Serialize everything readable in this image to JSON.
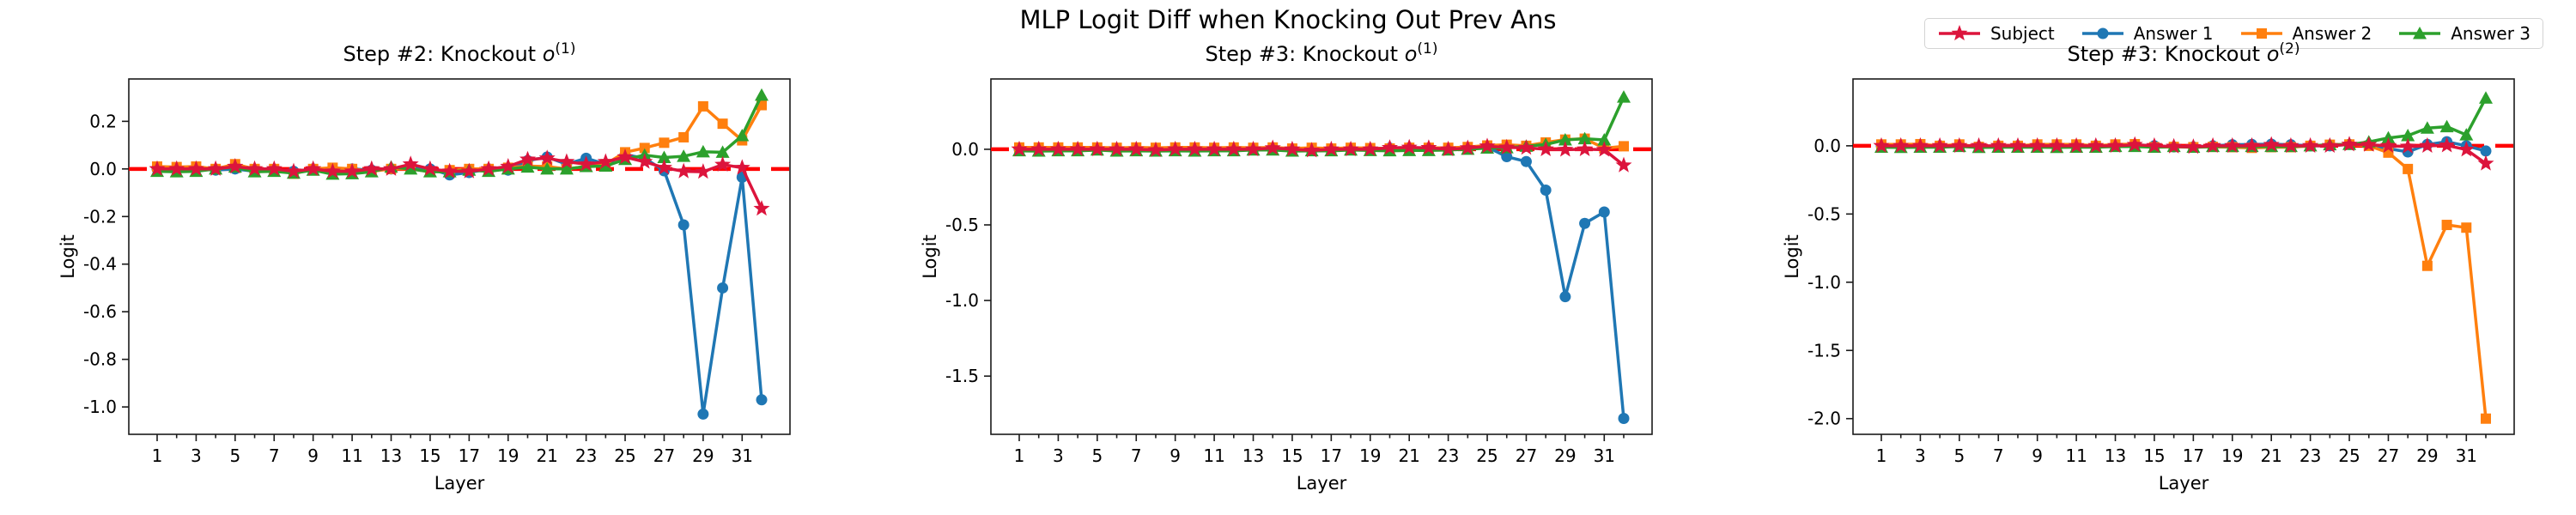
{
  "suptitle": "MLP Logit Diff when Knocking Out Prev Ans",
  "colors": {
    "zero_line": "#ff0000",
    "subject": "#dc143c",
    "answer1": "#1f77b4",
    "answer2": "#ff7f0e",
    "answer3": "#2ca02c",
    "axis": "#1a1a1a"
  },
  "legend": {
    "items": [
      {
        "label": "Subject",
        "marker": "star",
        "color": "#dc143c"
      },
      {
        "label": "Answer 1",
        "marker": "circle",
        "color": "#1f77b4"
      },
      {
        "label": "Answer 2",
        "marker": "square",
        "color": "#ff7f0e"
      },
      {
        "label": "Answer 3",
        "marker": "triangle",
        "color": "#2ca02c"
      }
    ]
  },
  "chart_data": [
    {
      "type": "line",
      "title": {
        "prefix": "Step #2: Knockout ",
        "var": "o",
        "sup": "(1)"
      },
      "xlabel": "Layer",
      "ylabel": "Logit",
      "x": [
        1,
        2,
        3,
        4,
        5,
        6,
        7,
        8,
        9,
        10,
        11,
        12,
        13,
        14,
        15,
        16,
        17,
        18,
        19,
        20,
        21,
        22,
        23,
        24,
        25,
        26,
        27,
        28,
        29,
        30,
        31,
        32
      ],
      "xticks": [
        1,
        3,
        5,
        7,
        9,
        11,
        13,
        15,
        17,
        19,
        21,
        23,
        25,
        27,
        29,
        31
      ],
      "ylim": [
        -1.115,
        0.378
      ],
      "yticks": [
        "0.2",
        "0.0",
        "-0.2",
        "-0.4",
        "-0.6",
        "-0.8",
        "-1.0"
      ],
      "zero_line": 0.0,
      "grid": false,
      "series": [
        {
          "name": "Subject",
          "marker": "star",
          "color": "#dc143c",
          "zorder": 5,
          "values": [
            0.0,
            0.0,
            0.0,
            0.0,
            0.01,
            0.0,
            0.0,
            -0.01,
            0.0,
            -0.01,
            -0.01,
            0.0,
            0.0,
            0.02,
            0.0,
            -0.01,
            -0.01,
            0.0,
            0.01,
            0.04,
            0.045,
            0.03,
            0.02,
            0.03,
            0.05,
            0.03,
            0.005,
            -0.01,
            -0.012,
            0.018,
            0.005,
            -0.167
          ]
        },
        {
          "name": "Answer 1",
          "marker": "circle",
          "color": "#1f77b4",
          "zorder": 2,
          "values": [
            0.0,
            0.0,
            0.0,
            -0.005,
            0.0,
            -0.01,
            -0.008,
            -0.01,
            0.0,
            -0.01,
            0.0,
            -0.005,
            0.0,
            0.005,
            0.0,
            -0.025,
            -0.015,
            0.0,
            -0.005,
            0.035,
            0.05,
            0.02,
            0.045,
            0.02,
            0.06,
            0.045,
            -0.008,
            -0.235,
            -1.03,
            -0.5,
            -0.035,
            -0.97
          ]
        },
        {
          "name": "Answer 2",
          "marker": "square",
          "color": "#ff7f0e",
          "zorder": 3,
          "values": [
            0.01,
            0.008,
            0.01,
            0.0,
            0.02,
            0.0,
            0.0,
            -0.02,
            0.0,
            0.005,
            0.0,
            -0.01,
            0.0,
            0.0,
            -0.012,
            -0.005,
            0.0,
            0.0,
            0.005,
            0.012,
            0.01,
            0.0,
            0.01,
            0.02,
            0.07,
            0.088,
            0.11,
            0.133,
            0.263,
            0.19,
            0.12,
            0.268
          ]
        },
        {
          "name": "Answer 3",
          "marker": "triangle",
          "color": "#2ca02c",
          "zorder": 4,
          "values": [
            -0.01,
            -0.012,
            -0.01,
            0.0,
            0.008,
            -0.012,
            -0.01,
            -0.018,
            -0.005,
            -0.022,
            -0.02,
            -0.012,
            0.008,
            0.0,
            -0.012,
            -0.012,
            -0.005,
            -0.01,
            0.0,
            0.008,
            0.0,
            0.0,
            0.01,
            0.012,
            0.04,
            0.058,
            0.048,
            0.053,
            0.072,
            0.07,
            0.14,
            0.31
          ]
        }
      ]
    },
    {
      "type": "line",
      "title": {
        "prefix": "Step #3: Knockout ",
        "var": "o",
        "sup": "(1)"
      },
      "xlabel": "Layer",
      "ylabel": "Logit",
      "x": [
        1,
        2,
        3,
        4,
        5,
        6,
        7,
        8,
        9,
        10,
        11,
        12,
        13,
        14,
        15,
        16,
        17,
        18,
        19,
        20,
        21,
        22,
        23,
        24,
        25,
        26,
        27,
        28,
        29,
        30,
        31,
        32
      ],
      "xticks": [
        1,
        3,
        5,
        7,
        9,
        11,
        13,
        15,
        17,
        19,
        21,
        23,
        25,
        27,
        29,
        31
      ],
      "ylim": [
        -1.885,
        0.465
      ],
      "yticks": [
        "0.0",
        "-0.5",
        "-1.0",
        "-1.5"
      ],
      "zero_line": 0.0,
      "grid": false,
      "series": [
        {
          "name": "Subject",
          "marker": "star",
          "color": "#dc143c",
          "zorder": 5,
          "values": [
            0.0,
            0.0,
            0.0,
            0.0,
            0.0,
            0.0,
            0.0,
            -0.005,
            0.0,
            0.0,
            0.0,
            0.0,
            0.0,
            0.008,
            0.0,
            -0.008,
            0.0,
            0.0,
            0.0,
            0.01,
            0.012,
            0.01,
            0.0,
            0.008,
            0.02,
            0.012,
            0.01,
            0.0,
            -0.003,
            0.0,
            -0.003,
            -0.106
          ]
        },
        {
          "name": "Answer 1",
          "marker": "circle",
          "color": "#1f77b4",
          "zorder": 2,
          "values": [
            0.0,
            0.0,
            0.0,
            0.0,
            0.0,
            0.0,
            0.0,
            0.0,
            0.0,
            -0.005,
            0.0,
            0.0,
            0.0,
            0.0,
            0.0,
            -0.008,
            -0.005,
            0.005,
            0.0,
            0.008,
            0.01,
            0.008,
            0.0,
            0.01,
            0.015,
            -0.049,
            -0.081,
            -0.27,
            -0.975,
            -0.49,
            -0.415,
            -1.78
          ]
        },
        {
          "name": "Answer 2",
          "marker": "square",
          "color": "#ff7f0e",
          "zorder": 3,
          "values": [
            0.012,
            0.012,
            0.012,
            0.012,
            0.012,
            0.01,
            0.012,
            0.01,
            0.012,
            0.012,
            0.01,
            0.012,
            0.01,
            0.012,
            0.005,
            0.01,
            0.005,
            0.01,
            0.008,
            0.005,
            0.01,
            0.01,
            0.01,
            0.015,
            0.025,
            0.03,
            0.023,
            0.045,
            0.064,
            0.07,
            0.007,
            0.02
          ]
        },
        {
          "name": "Answer 3",
          "marker": "triangle",
          "color": "#2ca02c",
          "zorder": 4,
          "values": [
            -0.01,
            -0.012,
            -0.01,
            -0.01,
            -0.005,
            -0.012,
            -0.01,
            -0.012,
            -0.01,
            -0.012,
            -0.01,
            -0.01,
            -0.005,
            -0.005,
            -0.012,
            -0.01,
            -0.01,
            -0.005,
            -0.008,
            -0.01,
            -0.008,
            -0.008,
            -0.005,
            0.0,
            0.008,
            0.01,
            0.02,
            0.032,
            0.062,
            0.07,
            0.062,
            0.345
          ]
        }
      ]
    },
    {
      "type": "line",
      "title": {
        "prefix": "Step #3: Knockout ",
        "var": "o",
        "sup": "(2)"
      },
      "xlabel": "Layer",
      "ylabel": "Logit",
      "x": [
        1,
        2,
        3,
        4,
        5,
        6,
        7,
        8,
        9,
        10,
        11,
        12,
        13,
        14,
        15,
        16,
        17,
        18,
        19,
        20,
        21,
        22,
        23,
        24,
        25,
        26,
        27,
        28,
        29,
        30,
        31,
        32
      ],
      "xticks": [
        1,
        3,
        5,
        7,
        9,
        11,
        13,
        15,
        17,
        19,
        21,
        23,
        25,
        27,
        29,
        31
      ],
      "ylim": [
        -2.115,
        0.49
      ],
      "yticks": [
        "0.0",
        "-0.5",
        "-1.0",
        "-1.5",
        "-2.0"
      ],
      "zero_line": 0.0,
      "grid": false,
      "series": [
        {
          "name": "Subject",
          "marker": "star",
          "color": "#dc143c",
          "zorder": 5,
          "values": [
            0.0,
            0.0,
            0.0,
            0.0,
            0.0,
            0.0,
            0.0,
            0.0,
            0.0,
            0.0,
            0.0,
            0.0,
            0.0,
            0.008,
            0.0,
            -0.005,
            -0.008,
            0.0,
            0.0,
            0.0,
            0.008,
            0.0,
            0.0,
            0.0,
            0.01,
            0.008,
            0.0,
            -0.005,
            0.0,
            0.003,
            -0.028,
            -0.13
          ]
        },
        {
          "name": "Answer 1",
          "marker": "circle",
          "color": "#1f77b4",
          "zorder": 2,
          "values": [
            0.0,
            0.0,
            0.0,
            0.0,
            0.0,
            -0.008,
            0.0,
            0.0,
            0.0,
            0.0,
            0.0,
            0.0,
            0.0,
            0.008,
            0.0,
            -0.008,
            -0.008,
            0.0,
            0.008,
            0.01,
            0.012,
            0.008,
            0.0,
            0.0,
            0.01,
            0.008,
            -0.02,
            -0.045,
            0.01,
            0.03,
            0.0,
            -0.038
          ]
        },
        {
          "name": "Answer 2",
          "marker": "square",
          "color": "#ff7f0e",
          "zorder": 3,
          "values": [
            0.01,
            0.01,
            0.012,
            0.0,
            0.01,
            -0.008,
            0.0,
            0.0,
            0.01,
            0.01,
            0.01,
            0.0,
            0.01,
            0.012,
            -0.01,
            -0.008,
            -0.01,
            -0.008,
            -0.01,
            -0.015,
            -0.01,
            -0.01,
            0.0,
            0.008,
            0.01,
            0.0,
            -0.05,
            -0.17,
            -0.88,
            -0.58,
            -0.6,
            -2.0
          ]
        },
        {
          "name": "Answer 3",
          "marker": "triangle",
          "color": "#2ca02c",
          "zorder": 4,
          "values": [
            -0.01,
            -0.012,
            -0.01,
            -0.01,
            -0.005,
            -0.012,
            -0.01,
            -0.01,
            -0.01,
            -0.012,
            -0.01,
            -0.01,
            -0.005,
            -0.005,
            -0.01,
            -0.005,
            -0.01,
            -0.005,
            -0.005,
            -0.005,
            -0.005,
            -0.005,
            0.0,
            0.008,
            0.01,
            0.028,
            0.058,
            0.075,
            0.13,
            0.14,
            0.08,
            0.35
          ]
        }
      ]
    }
  ]
}
